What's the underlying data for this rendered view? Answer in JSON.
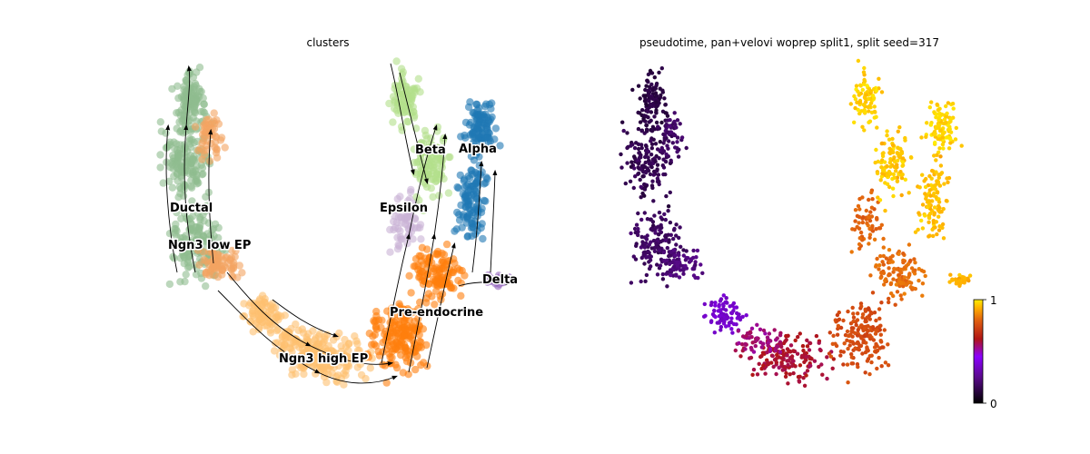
{
  "chart_data": [
    {
      "type": "scatter",
      "title": "clusters",
      "grid": false,
      "axes_visible": false,
      "overlay": "velocity streamlines with arrowheads",
      "legend": "on data",
      "clusters": [
        {
          "name": "Ductal",
          "color": "#8fbc8f"
        },
        {
          "name": "Ngn3 low EP",
          "color": "#f4a460"
        },
        {
          "name": "Ngn3 high EP",
          "color": "#fdbf6f"
        },
        {
          "name": "Pre-endocrine",
          "color": "#ff7f0e"
        },
        {
          "name": "Beta",
          "color": "#b2df8a"
        },
        {
          "name": "Alpha",
          "color": "#1f78b4"
        },
        {
          "name": "Delta",
          "color": "#9467bd"
        },
        {
          "name": "Epsilon",
          "color": "#cab2d6"
        }
      ]
    },
    {
      "type": "scatter",
      "title": "pseudotime, pan+velovi woprep split1, split seed=317",
      "grid": false,
      "axes_visible": false,
      "colormap": "gnuplot",
      "colorbar": {
        "range": [
          0,
          1
        ],
        "ticks": [
          "0",
          "1"
        ],
        "placement": "right"
      }
    }
  ]
}
